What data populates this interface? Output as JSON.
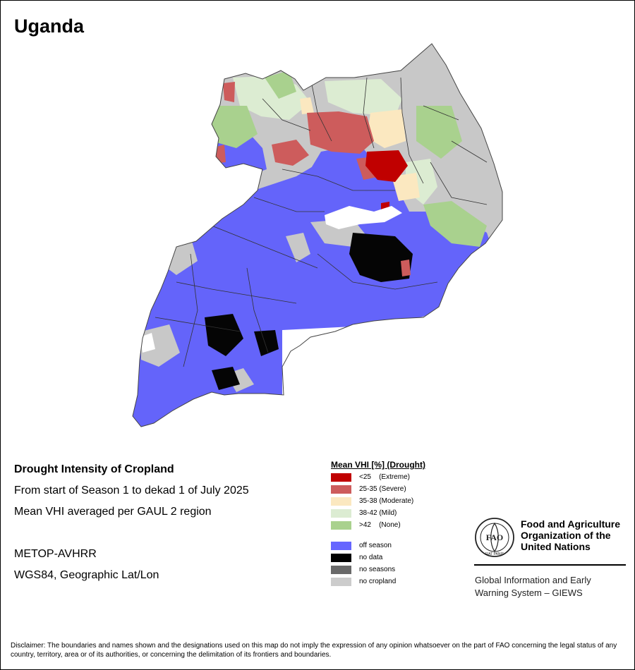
{
  "title": "Uganda",
  "info": {
    "heading": "Drought Intensity of Cropland",
    "period": "From start of Season 1 to dekad 1 of July 2025",
    "method": "Mean VHI averaged per GAUL 2 region",
    "sensor": "METOP-AVHRR",
    "projection": "WGS84, Geographic Lat/Lon"
  },
  "legend": {
    "title": "Mean VHI [%] (Drought)",
    "vhi_classes": [
      {
        "label": "<25    (Extreme)",
        "color": "#c00000"
      },
      {
        "label": "25-35 (Severe)",
        "color": "#cd5c5c"
      },
      {
        "label": "35-38 (Moderate)",
        "color": "#fbe8c0"
      },
      {
        "label": "38-42 (Mild)",
        "color": "#dcecd2"
      },
      {
        "label": ">42    (None)",
        "color": "#a9d18e"
      }
    ],
    "other_classes": [
      {
        "label": "off season",
        "color": "#6666ff"
      },
      {
        "label": "no data",
        "color": "#000000"
      },
      {
        "label": "no seasons",
        "color": "#696969"
      },
      {
        "label": "no cropland",
        "color": "#cccccc"
      }
    ]
  },
  "fao": {
    "logo_text": "FAO",
    "logo_motto": "FIAT PANIS",
    "name_lines": [
      "Food and Agriculture",
      "Organization of the",
      "United Nations"
    ],
    "system_lines": [
      "Global Information and Early",
      "Warning System – GIEWS"
    ]
  },
  "disclaimer": "Disclaimer: The boundaries and names shown and the designations used on this map do not imply the expression of any opinion whatsoever on the part of FAO concerning the legal status of any country, territory, area or of its authorities, or concerning the delimitation of its frontiers and boundaries."
}
